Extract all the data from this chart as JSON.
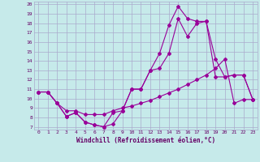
{
  "bg_color": "#c6eaea",
  "line_color": "#990099",
  "grid_color": "#aaaacc",
  "xlabel": "Windchill (Refroidissement éolien,°C)",
  "xlabel_color": "#660066",
  "tick_color": "#660066",
  "xlim": [
    -0.5,
    23.5
  ],
  "ylim": [
    6.7,
    20.3
  ],
  "xticks": [
    0,
    1,
    2,
    3,
    4,
    5,
    6,
    7,
    8,
    9,
    10,
    11,
    12,
    13,
    14,
    15,
    16,
    17,
    18,
    19,
    20,
    21,
    22,
    23
  ],
  "yticks": [
    7,
    8,
    9,
    10,
    11,
    12,
    13,
    14,
    15,
    16,
    17,
    18,
    19,
    20
  ],
  "line1_x": [
    0,
    1,
    2,
    3,
    4,
    5,
    6,
    7,
    8,
    9,
    10,
    11,
    12,
    13,
    14,
    15,
    16,
    17,
    18,
    19,
    20,
    21,
    22,
    23
  ],
  "line1_y": [
    10.7,
    10.7,
    9.5,
    8.1,
    8.5,
    7.5,
    7.2,
    7.0,
    7.3,
    8.7,
    11.0,
    11.0,
    13.0,
    14.8,
    17.8,
    19.8,
    18.5,
    18.2,
    18.2,
    14.2,
    12.3,
    12.5,
    12.5,
    9.9
  ],
  "line2_x": [
    0,
    1,
    2,
    3,
    4,
    5,
    6,
    7,
    8,
    9,
    10,
    11,
    12,
    13,
    14,
    15,
    16,
    17,
    18,
    19,
    20,
    21,
    22,
    23
  ],
  "line2_y": [
    10.7,
    10.7,
    9.5,
    8.1,
    8.5,
    7.5,
    7.2,
    7.0,
    8.5,
    8.7,
    11.0,
    11.0,
    13.0,
    13.2,
    14.8,
    18.5,
    16.6,
    18.0,
    18.2,
    12.3,
    12.3,
    12.5,
    12.5,
    9.9
  ],
  "line3_x": [
    0,
    1,
    2,
    3,
    4,
    5,
    6,
    7,
    8,
    9,
    10,
    11,
    12,
    13,
    14,
    15,
    16,
    17,
    18,
    19,
    20,
    21,
    22,
    23
  ],
  "line3_y": [
    10.7,
    10.7,
    9.5,
    8.7,
    8.7,
    8.3,
    8.3,
    8.3,
    8.7,
    9.0,
    9.2,
    9.5,
    9.8,
    10.2,
    10.6,
    11.0,
    11.5,
    12.0,
    12.5,
    13.2,
    14.2,
    9.5,
    9.9,
    9.9
  ]
}
